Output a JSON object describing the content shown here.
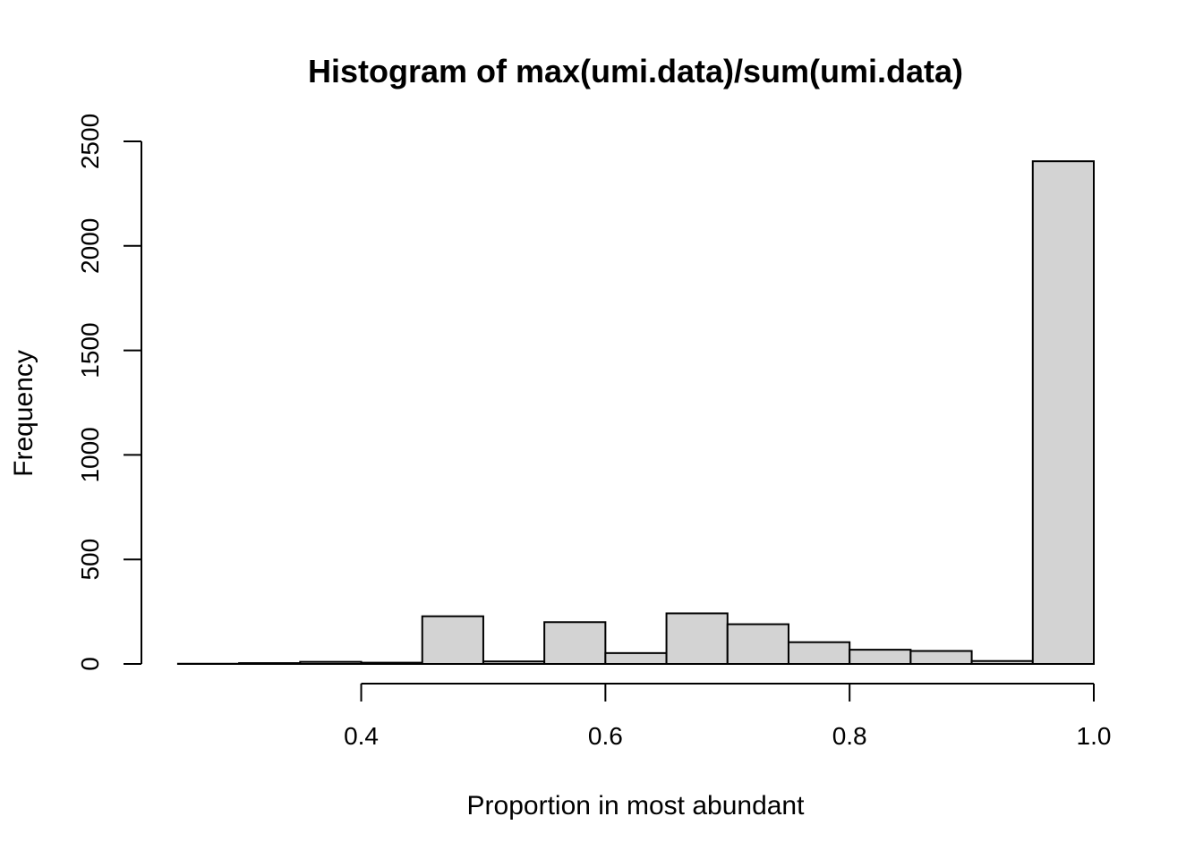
{
  "chart_data": {
    "type": "bar",
    "title": "Histogram of max(umi.data)/sum(umi.data)",
    "xlabel": "Proportion in most abundant",
    "ylabel": "Frequency",
    "x_ticks": [
      0.4,
      0.6,
      0.8,
      1.0
    ],
    "x_tick_labels": [
      "0.4",
      "0.6",
      "0.8",
      "1.0"
    ],
    "y_ticks": [
      0,
      500,
      1000,
      1500,
      2000,
      2500
    ],
    "y_tick_labels": [
      "0",
      "500",
      "1000",
      "1500",
      "2000",
      "2500"
    ],
    "xlim": [
      0.22,
      1.0
    ],
    "ylim": [
      0,
      2500
    ],
    "bin_edges": [
      0.25,
      0.3,
      0.35,
      0.4,
      0.45,
      0.5,
      0.55,
      0.6,
      0.65,
      0.7,
      0.75,
      0.8,
      0.85,
      0.9,
      0.95,
      1.0
    ],
    "values": [
      1,
      4,
      10,
      6,
      228,
      12,
      200,
      52,
      242,
      190,
      104,
      68,
      62,
      14,
      2405
    ],
    "bar_fill": "#d3d3d3",
    "bar_stroke": "#000000",
    "grid": false
  }
}
